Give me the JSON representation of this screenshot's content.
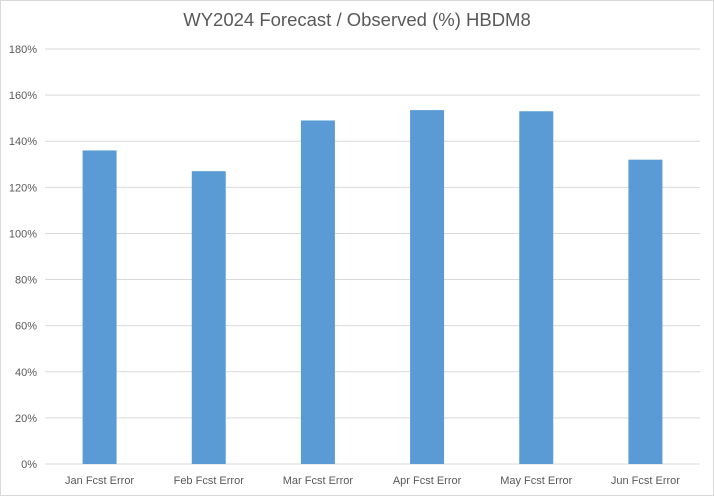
{
  "chart_data": {
    "type": "bar",
    "title": "WY2024 Forecast / Observed (%) HBDM8",
    "categories": [
      "Jan Fcst Error",
      "Feb Fcst Error",
      "Mar Fcst Error",
      "Apr Fcst Error",
      "May Fcst Error",
      "Jun Fcst Error"
    ],
    "values": [
      136,
      127,
      149,
      153.5,
      153,
      132
    ],
    "xlabel": "",
    "ylabel": "",
    "ylim": [
      0,
      180
    ],
    "yticks": [
      0,
      20,
      40,
      60,
      80,
      100,
      120,
      140,
      160,
      180
    ],
    "ytick_labels": [
      "0%",
      "20%",
      "40%",
      "60%",
      "80%",
      "100%",
      "120%",
      "140%",
      "160%",
      "180%"
    ],
    "grid": true,
    "legend": "none",
    "bar_color": "#5b9bd5",
    "gridline_color": "#d9d9d9"
  }
}
